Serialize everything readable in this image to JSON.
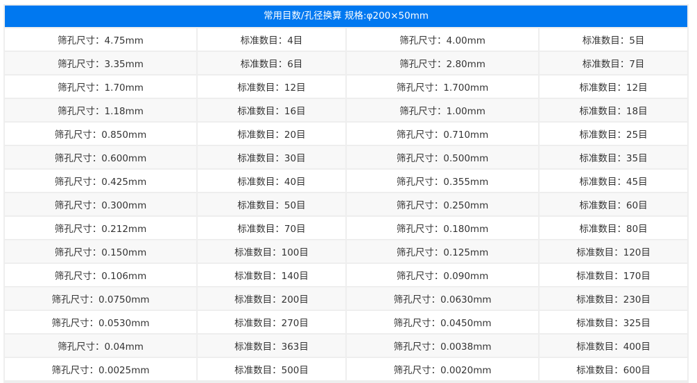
{
  "title": "常用目数/孔径换算 规格:φ200×50mm",
  "colors": {
    "header_bg": "#0078f0",
    "header_text": "#ffffff",
    "border": "#eeeeee",
    "stripe": "#f8f8f8"
  },
  "rows": [
    [
      "筛孔尺寸：4.75mm",
      "标准数目：4目",
      "筛孔尺寸：4.00mm",
      "标准数目：5目"
    ],
    [
      "筛孔尺寸：3.35mm",
      "标准数目：6目",
      "筛孔尺寸：2.80mm",
      "标准数目：7目"
    ],
    [
      "筛孔尺寸：1.70mm",
      "标准数目：12目",
      "筛孔尺寸：1.700mm",
      "标准数目：12目"
    ],
    [
      "筛孔尺寸：1.18mm",
      "标准数目：16目",
      "筛孔尺寸：1.00mm",
      "标准数目：18目"
    ],
    [
      "筛孔尺寸：0.850mm",
      "标准数目：20目",
      "筛孔尺寸：0.710mm",
      "标准数目：25目"
    ],
    [
      "筛孔尺寸：0.600mm",
      "标准数目：30目",
      "筛孔尺寸：0.500mm",
      "标准数目：35目"
    ],
    [
      "筛孔尺寸：0.425mm",
      "标准数目：40目",
      "筛孔尺寸：0.355mm",
      "标准数目：45目"
    ],
    [
      "筛孔尺寸：0.300mm",
      "标准数目：50目",
      "筛孔尺寸：0.250mm",
      "标准数目：60目"
    ],
    [
      "筛孔尺寸：0.212mm",
      "标准数目：70目",
      "筛孔尺寸：0.180mm",
      "标准数目：80目"
    ],
    [
      "筛孔尺寸：0.150mm",
      "标准数目：100目",
      "筛孔尺寸：0.125mm",
      "标准数目：120目"
    ],
    [
      "筛孔尺寸：0.106mm",
      "标准数目：140目",
      "筛孔尺寸：0.090mm",
      "标准数目：170目"
    ],
    [
      "筛孔尺寸：0.0750mm",
      "标准数目：200目",
      "筛孔尺寸：0.0630mm",
      "标准数目：230目"
    ],
    [
      "筛孔尺寸：0.0530mm",
      "标准数目：270目",
      "筛孔尺寸：0.0450mm",
      "标准数目：325目"
    ],
    [
      "筛孔尺寸：0.04mm",
      "标准数目：363目",
      "筛孔尺寸：0.0038mm",
      "标准数目：400目"
    ],
    [
      "筛孔尺寸：0.0025mm",
      "标准数目：500目",
      "筛孔尺寸：0.0020mm",
      "标准数目：600目"
    ]
  ]
}
